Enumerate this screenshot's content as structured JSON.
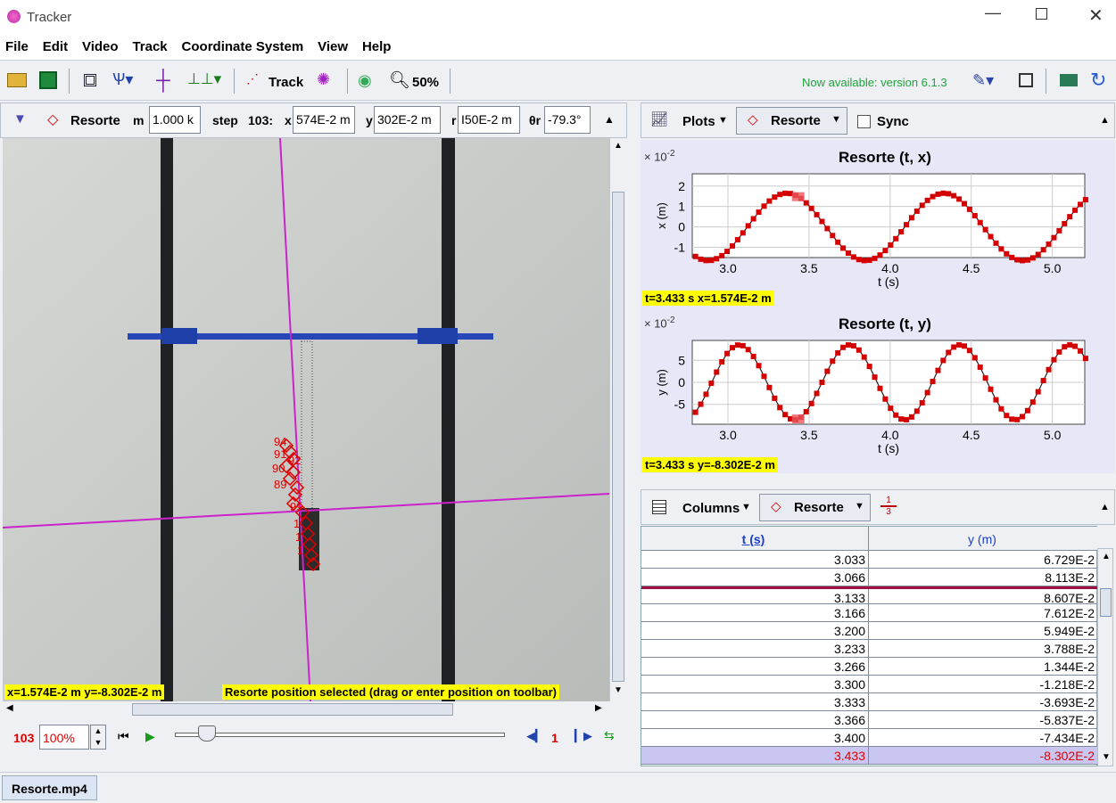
{
  "window": {
    "title": "Tracker"
  },
  "menu": [
    "File",
    "Edit",
    "Video",
    "Track",
    "Coordinate System",
    "View",
    "Help"
  ],
  "toolbar": {
    "track_label": "Track",
    "zoom": "50%",
    "update_notice": "Now available: version 6.1.3"
  },
  "track_toolbar": {
    "track_name": "Resorte",
    "mass_label": "m",
    "mass_value": "1.000 k",
    "step_label": "step",
    "step_value": "103:",
    "x_label": "x",
    "x_value": "574E-2 m",
    "y_label": "y",
    "y_value": "302E-2 m",
    "r_label": "r",
    "r_value": "I50E-2 m",
    "theta_label": "θr",
    "theta_value": "-79.3°"
  },
  "video": {
    "coords_readout": "x=1.574E-2 m  y=-8.302E-2 m",
    "status_message": "Resorte position selected (drag or enter position on toolbar)",
    "trail_labels": [
      "94",
      "91",
      "92",
      "90",
      "89",
      "99",
      "1",
      "1",
      "1"
    ]
  },
  "player": {
    "frame": "103",
    "rate": "100%",
    "step": "1"
  },
  "plots_toolbar": {
    "plots_label": "Plots",
    "track": "Resorte",
    "sync": "Sync"
  },
  "plot_x": {
    "title": "Resorte (t, x)",
    "exponent": "× 10",
    "exponent_power": "-2",
    "ylabel": "x (m)",
    "xlabel": "t (s)",
    "readout": "t=3.433 s  x=1.574E-2 m",
    "yticks": [
      "2",
      "1",
      "0",
      "-1"
    ],
    "xticks": [
      "3.0",
      "3.5",
      "4.0",
      "4.5",
      "5.0"
    ]
  },
  "plot_y": {
    "title": "Resorte (t, y)",
    "exponent": "× 10",
    "exponent_power": "-2",
    "ylabel": "y (m)",
    "xlabel": "t (s)",
    "readout": "t=3.433 s  y=-8.302E-2 m",
    "yticks": [
      "5",
      "0",
      "-5"
    ],
    "xticks": [
      "3.0",
      "3.5",
      "4.0",
      "4.5",
      "5.0"
    ]
  },
  "table_toolbar": {
    "columns_label": "Columns",
    "track": "Resorte",
    "fraction_top": "1",
    "fraction_bottom": "3"
  },
  "table": {
    "headers": [
      "t (s)",
      "y (m)"
    ],
    "rows": [
      [
        "3.033",
        "6.729E-2"
      ],
      [
        "3.066",
        "8.113E-2"
      ],
      [
        "3.133",
        "8.607E-2"
      ],
      [
        "3.166",
        "7.612E-2"
      ],
      [
        "3.200",
        "5.949E-2"
      ],
      [
        "3.233",
        "3.788E-2"
      ],
      [
        "3.266",
        "1.344E-2"
      ],
      [
        "3.300",
        "-1.218E-2"
      ],
      [
        "3.333",
        "-3.693E-2"
      ],
      [
        "3.366",
        "-5.837E-2"
      ],
      [
        "3.400",
        "-7.434E-2"
      ],
      [
        "3.433",
        "-8.302E-2"
      ]
    ],
    "selected_index": 11
  },
  "tabs": [
    "Resorte.mp4"
  ],
  "colors": {
    "accent": "#cc0000",
    "axis_magenta": "#cc22cc",
    "readout_bg": "#ffff00",
    "plot_bg": "#e7e7f7"
  }
}
